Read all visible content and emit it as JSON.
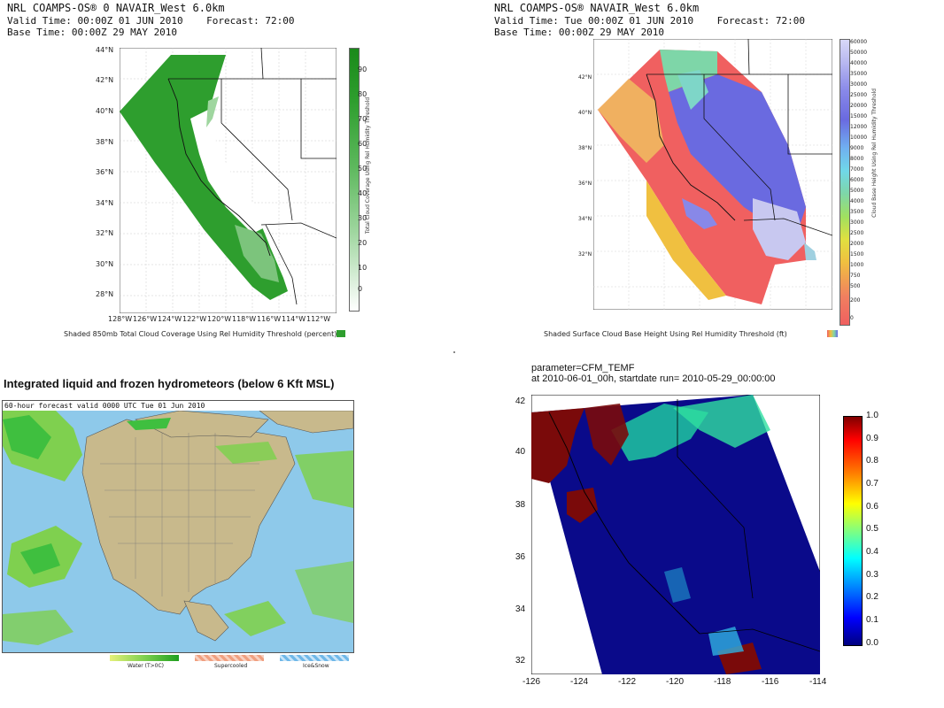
{
  "panel1": {
    "title_line1": "NRL COAMPS-OS® 0 NAVAIR_West 6.0km",
    "title_line2": "Valid Time: 00:00Z 01 JUN 2010    Forecast: 72:00",
    "title_line3": "Base Time: 00:00Z 29 MAY 2010",
    "lat_ticks": [
      "44°N",
      "42°N",
      "40°N",
      "38°N",
      "36°N",
      "34°N",
      "32°N",
      "30°N",
      "28°N"
    ],
    "lon_ticks": [
      "128°W",
      "126°W",
      "124°W",
      "122°W",
      "120°W",
      "118°W",
      "116°W",
      "114°W",
      "112°W"
    ],
    "colorbar_labels": [
      "90",
      "80",
      "70",
      "60",
      "50",
      "40",
      "30",
      "20",
      "10",
      "0"
    ],
    "colorbar_title": "Total Cloud Coverage Using Rel Humidity Threshold",
    "caption": "Shaded 850mb Total Cloud Coverage Using Rel Humidity Threshold (percent)",
    "colors": {
      "cloud": "#2e9e2e",
      "light": "#9fd69f"
    }
  },
  "panel2": {
    "title_line1": "NRL COAMPS-OS® NAVAIR_West 6.0km",
    "title_line2": "Valid Time: Tue 00:00Z 01 JUN 2010    Forecast: 72:00",
    "title_line3": "Base Time: 00:00Z 29 MAY 2010",
    "colorbar_labels": [
      "60000",
      "50000",
      "40000",
      "35000",
      "30000",
      "25000",
      "20000",
      "15000",
      "12000",
      "10000",
      "9000",
      "8000",
      "7000",
      "6000",
      "5000",
      "4000",
      "3500",
      "3000",
      "2500",
      "2000",
      "1500",
      "1000",
      "750",
      "500",
      "200",
      "0"
    ],
    "colorbar_title": "Cloud Base Height Using Rel Humidity Threshold",
    "caption": "Shaded Surface Cloud Base Height Using Rel Humidity Threshold (ft)"
  },
  "panel3": {
    "title": "Integrated liquid and frozen hydrometeors (below 6 Kft MSL)",
    "subtitle": "60-hour forecast valid 0000 UTC Tue 01 Jun 2010",
    "legend": [
      {
        "label": "Water (T>0C)"
      },
      {
        "label": "Supercooled"
      },
      {
        "label": "Ice&Snow"
      }
    ]
  },
  "panel4": {
    "title_line1": "parameter=CFM_TEMF",
    "title_line2": "at 2010-06-01_00h, startdate run= 2010-05-29_00:00:00",
    "y_ticks": [
      "42",
      "40",
      "38",
      "36",
      "34",
      "32"
    ],
    "x_ticks": [
      "-126",
      "-124",
      "-122",
      "-120",
      "-118",
      "-116",
      "-114"
    ],
    "colorbar_ticks": [
      "1.0",
      "0.9",
      "0.8",
      "0.7",
      "0.6",
      "0.5",
      "0.4",
      "0.3",
      "0.2",
      "0.1",
      "0.0"
    ]
  }
}
